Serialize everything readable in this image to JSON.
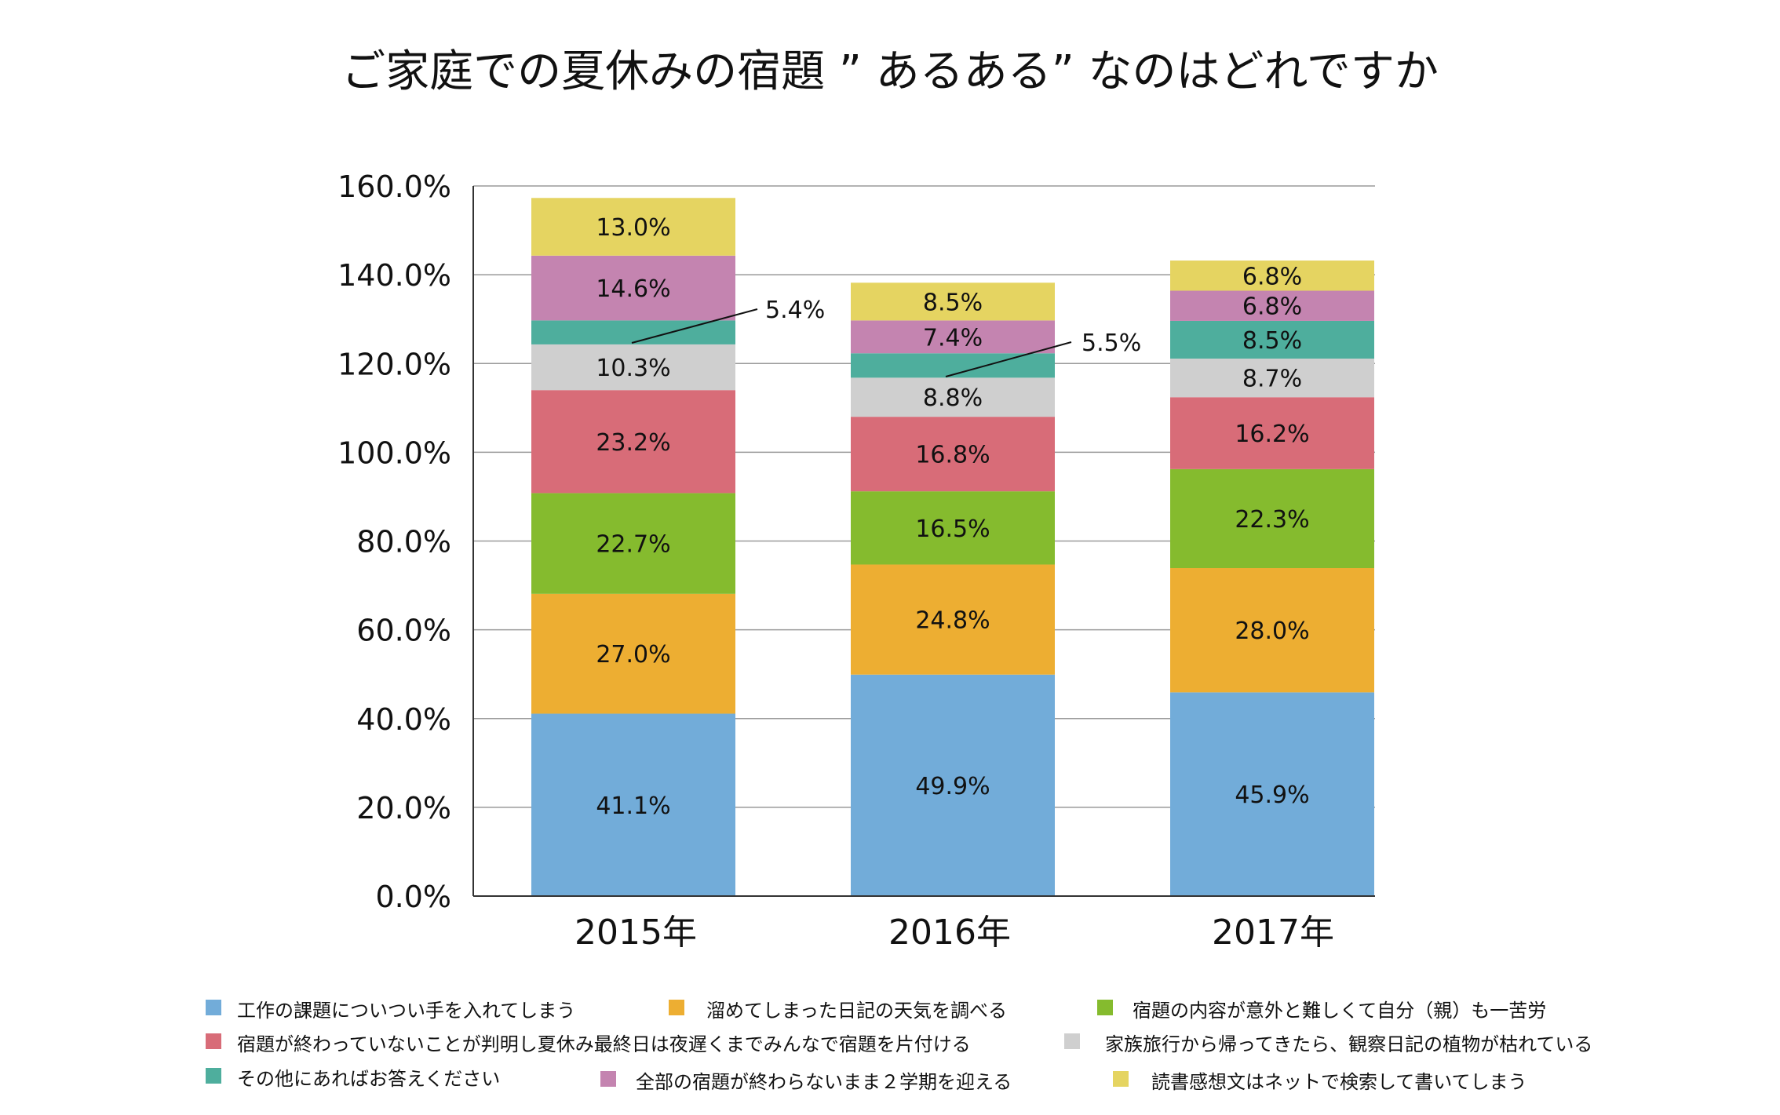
{
  "chart_data": {
    "type": "bar",
    "stacked": true,
    "title": "ご家庭での夏休みの宿題 ” あるある” なのはどれですか",
    "categories": [
      "2015年",
      "2016年",
      "2017年"
    ],
    "ylim": [
      0,
      160
    ],
    "yticks": [
      "0.0%",
      "20.0%",
      "40.0%",
      "60.0%",
      "80.0%",
      "100.0%",
      "120.0%",
      "140.0%",
      "160.0%"
    ],
    "grid": true,
    "legend_position": "bottom",
    "series": [
      {
        "name": "工作の課題についつい手を入れてしまう",
        "color": "#72acd9",
        "values": [
          41.1,
          49.9,
          45.9
        ],
        "labels": [
          "41.1%",
          "49.9%",
          "45.9%"
        ]
      },
      {
        "name": "溜めてしまった日記の天気を調べる",
        "color": "#edae32",
        "values": [
          27.0,
          24.8,
          28.0
        ],
        "labels": [
          "27.0%",
          "24.8%",
          "28.0%"
        ]
      },
      {
        "name": "宿題の内容が意外と難しくて自分（親）も一苦労",
        "color": "#85bb2e",
        "values": [
          22.7,
          16.5,
          22.3
        ],
        "labels": [
          "22.7%",
          "16.5%",
          "22.3%"
        ]
      },
      {
        "name": "宿題が終わっていないことが判明し夏休み最終日は夜遅くまでみんなで宿題を片付ける",
        "color": "#d86c78",
        "values": [
          23.2,
          16.8,
          16.2
        ],
        "labels": [
          "23.2%",
          "16.8%",
          "16.2%"
        ]
      },
      {
        "name": "家族旅行から帰ってきたら、観察日記の植物が枯れている",
        "color": "#cfcfcf",
        "values": [
          10.3,
          8.8,
          8.7
        ],
        "labels": [
          "10.3%",
          "8.8%",
          "8.7%"
        ]
      },
      {
        "name": "その他にあればお答えください",
        "color": "#4eae9d",
        "values": [
          5.4,
          5.5,
          8.5
        ],
        "labels": [
          "5.4%",
          "5.5%",
          "8.5%"
        ],
        "callout": [
          true,
          true,
          false
        ]
      },
      {
        "name": "全部の宿題が終わらないまま２学期を迎える",
        "color": "#c484b0",
        "values": [
          14.6,
          7.4,
          6.8
        ],
        "labels": [
          "14.6%",
          "7.4%",
          "6.8%"
        ]
      },
      {
        "name": "読書感想文はネットで検索して書いてしまう",
        "color": "#e5d461",
        "values": [
          13.0,
          8.5,
          6.8
        ],
        "labels": [
          "13.0%",
          "8.5%",
          "6.8%"
        ]
      }
    ]
  }
}
